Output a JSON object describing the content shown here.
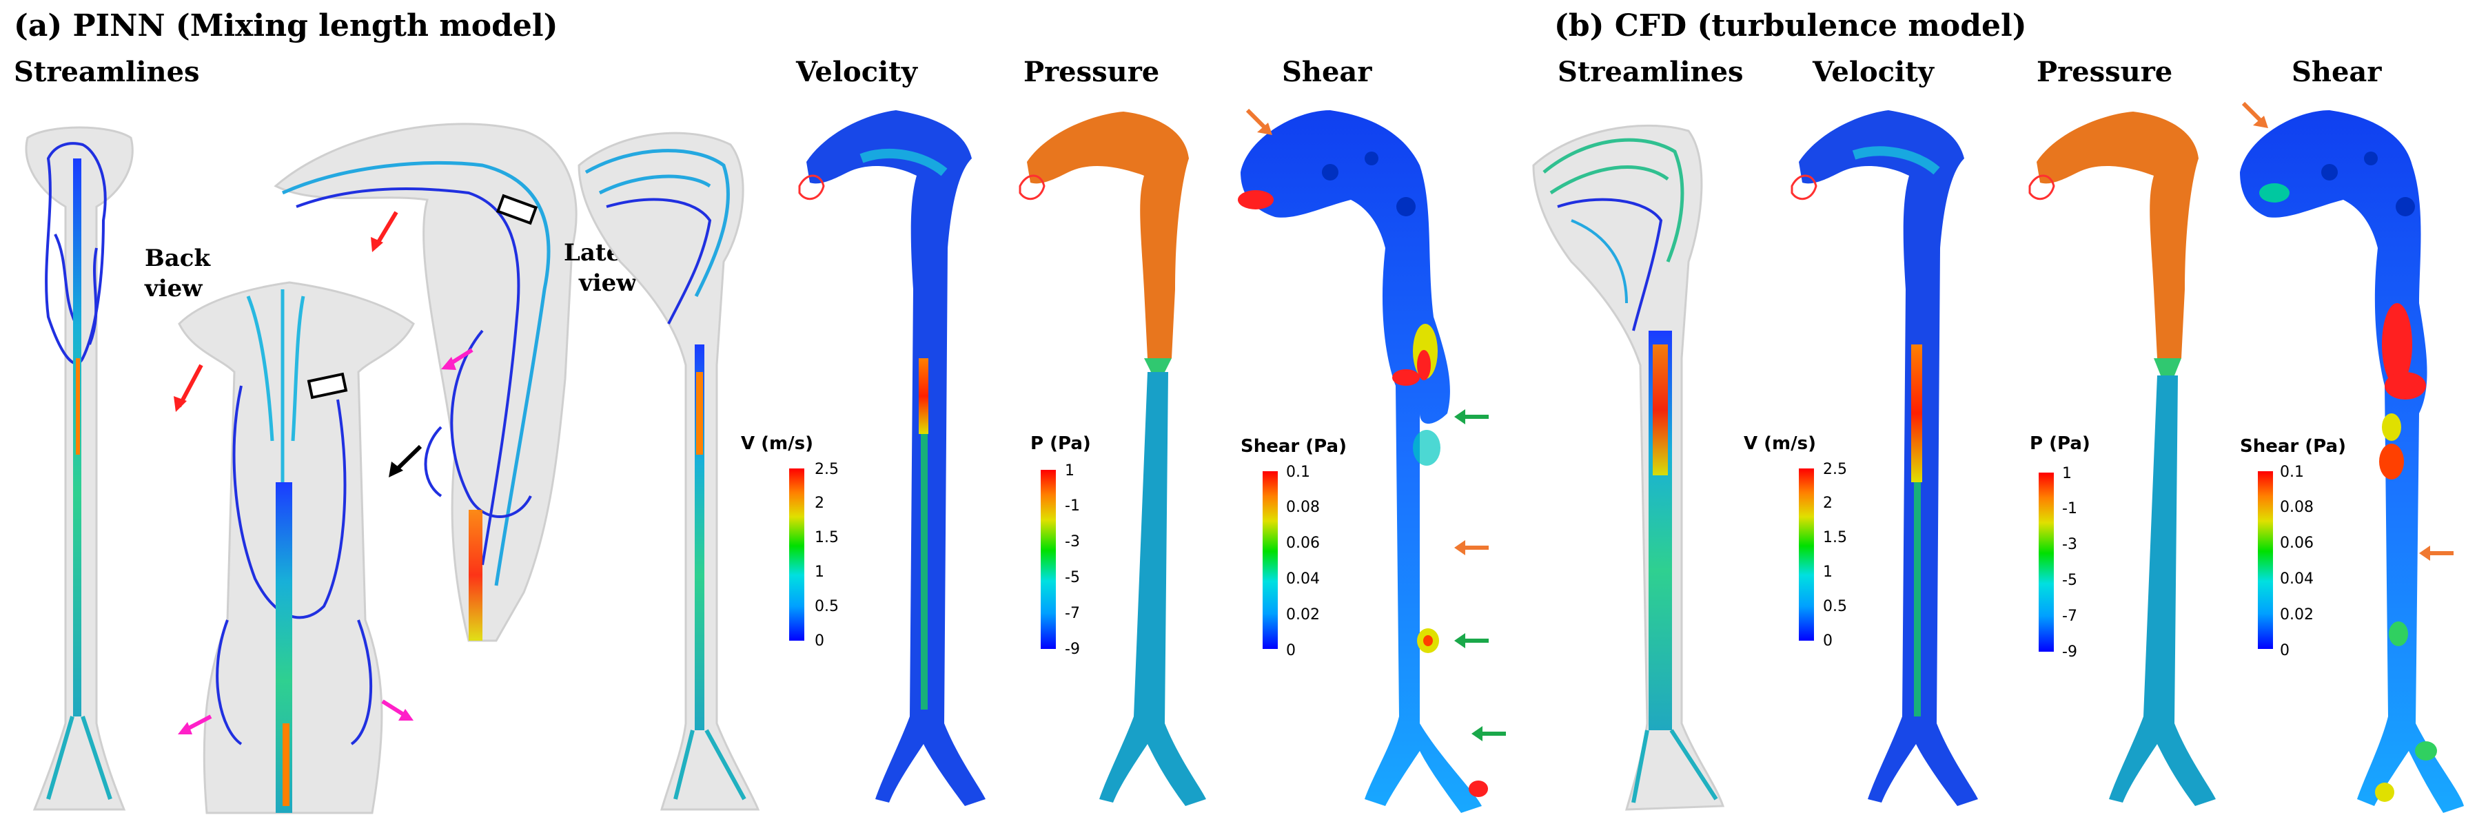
{
  "panels": [
    {
      "title": "(a) PINN (Mixing length model)",
      "columns": [
        "Streamlines",
        "Velocity",
        "Pressure",
        "Shear"
      ],
      "view_labels": [
        "Back",
        "view",
        "Lateral",
        "view"
      ],
      "colorbars": [
        {
          "label": "V (m/s)",
          "ticks": [
            "2.5",
            "2",
            "1.5",
            "1",
            "0.5",
            "0"
          ]
        },
        {
          "label": "P (Pa)",
          "ticks": [
            "1",
            "-1",
            "-3",
            "-5",
            "-7",
            "-9"
          ]
        },
        {
          "label": "Shear (Pa)",
          "ticks": [
            "0.1",
            "0.08",
            "0.06",
            "0.04",
            "0.02",
            "0"
          ]
        }
      ]
    },
    {
      "title": "(b) CFD (turbulence model)",
      "columns": [
        "Streamlines",
        "Velocity",
        "Pressure",
        "Shear"
      ],
      "colorbars": [
        {
          "label": "V (m/s)",
          "ticks": [
            "2.5",
            "2",
            "1.5",
            "1",
            "0.5",
            "0"
          ]
        },
        {
          "label": "P (Pa)",
          "ticks": [
            "1",
            "-1",
            "-3",
            "-5",
            "-7",
            "-9"
          ]
        },
        {
          "label": "Shear (Pa)",
          "ticks": [
            "0.1",
            "0.08",
            "0.06",
            "0.04",
            "0.02",
            "0"
          ]
        }
      ]
    }
  ],
  "colors": {
    "jet": [
      "#0000ff",
      "#00a0ff",
      "#00e0e0",
      "#00e000",
      "#e0e000",
      "#ff8000",
      "#ff0000"
    ],
    "pressure_orange": "#e8761e",
    "body_blue": "#1d4fe0",
    "arrow_red": "#ff2020",
    "arrow_magenta": "#ff20c8",
    "arrow_green": "#1aa84a",
    "arrow_orange": "#f07830"
  }
}
